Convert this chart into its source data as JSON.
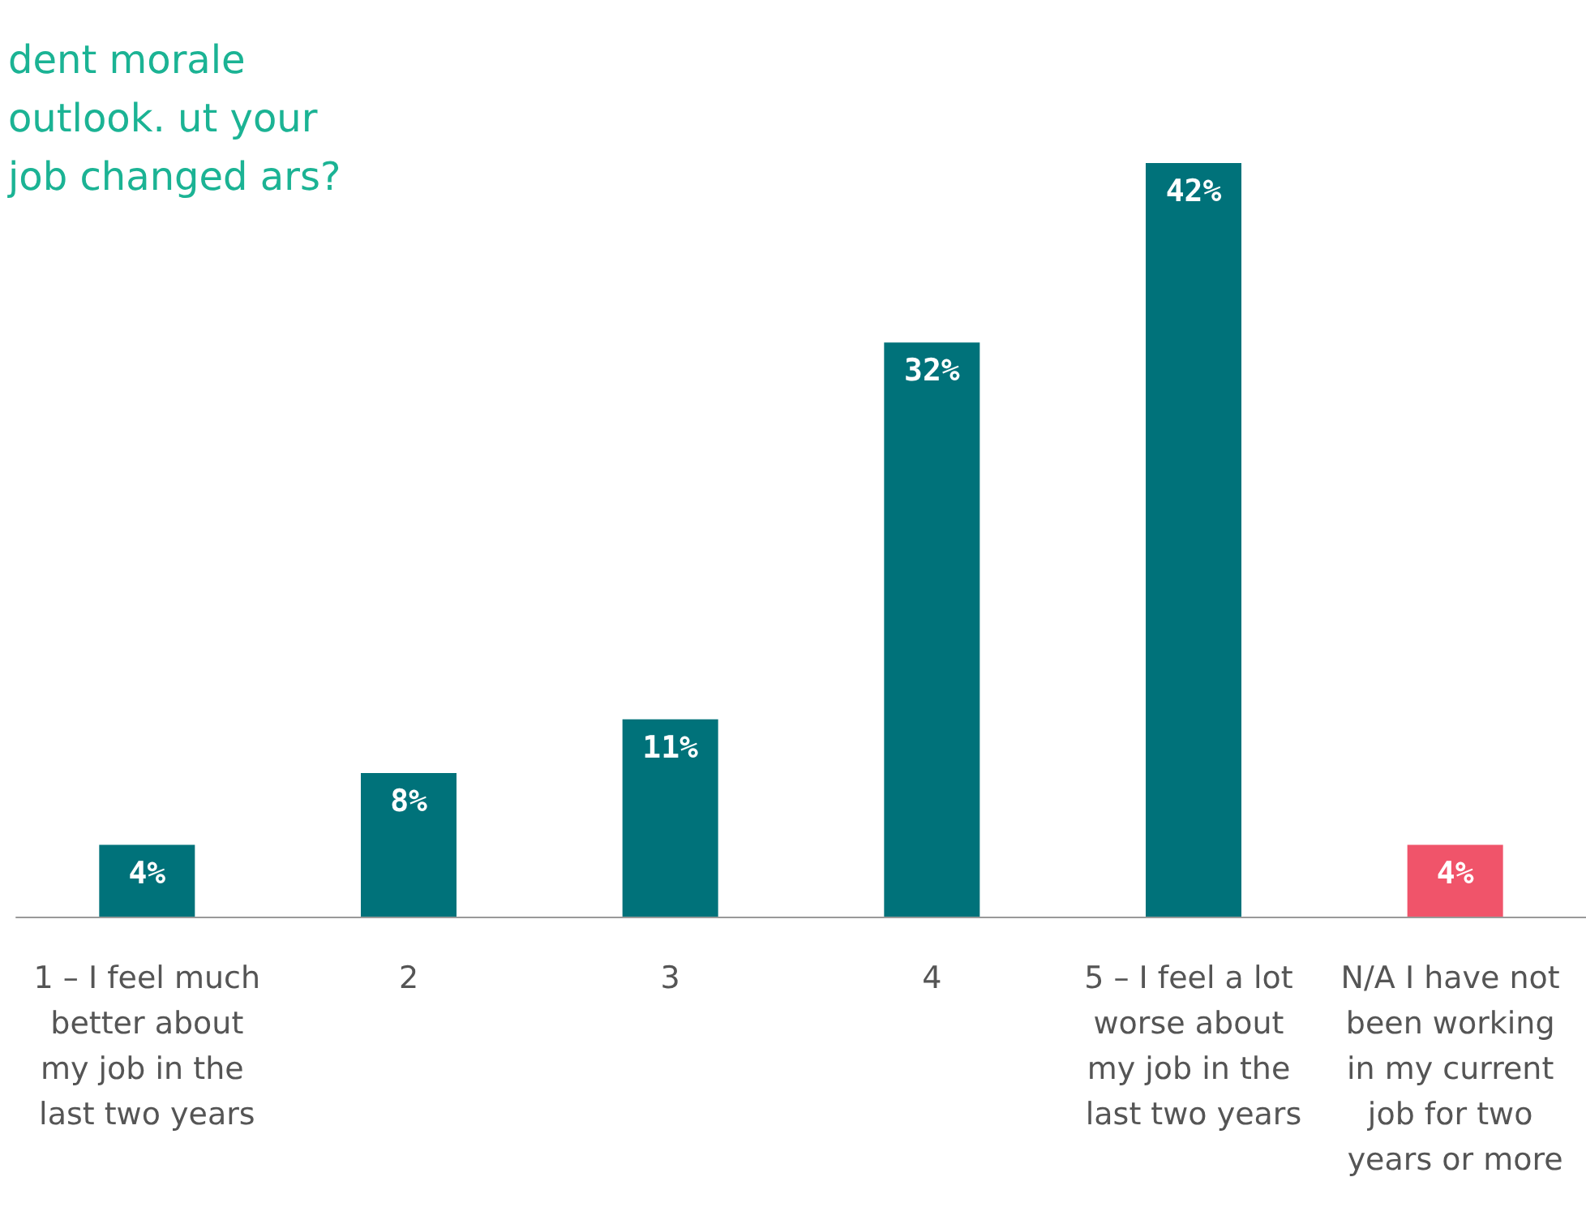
{
  "chart_data": {
    "type": "bar",
    "title": "dent morale outlook. ut your job changed ars?",
    "categories": [
      "1 – I feel much better about my job in the last two years",
      "2",
      "3",
      "4",
      "5 – I feel a lot worse about my job in the last two years",
      "N/A I have not been working in my current job for two years or more"
    ],
    "values": [
      4,
      8,
      11,
      32,
      42,
      4
    ],
    "colors": [
      "#00727a",
      "#00727a",
      "#00727a",
      "#00727a",
      "#00727a",
      "#f0546a"
    ],
    "value_labels": [
      "4%",
      "8%",
      "11%",
      "32%",
      "42%",
      "4%"
    ],
    "data_labels": false
  }
}
